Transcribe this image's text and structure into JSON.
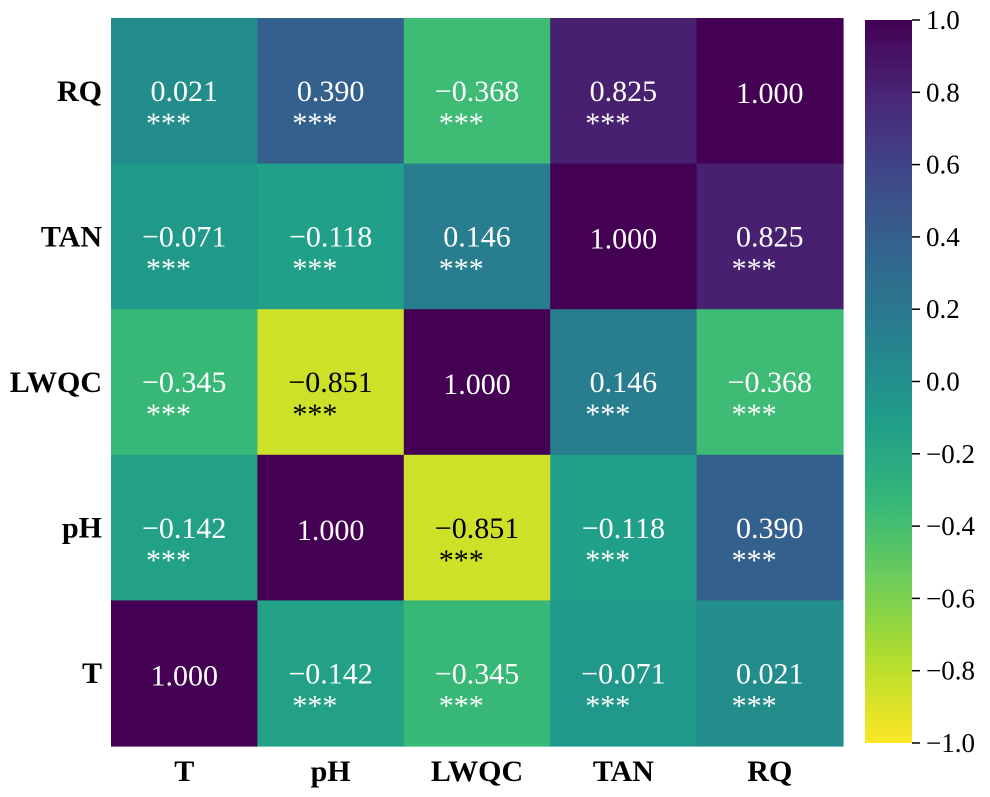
{
  "chart_data": {
    "type": "heatmap",
    "row_labels": [
      "RQ",
      "TAN",
      "LWQC",
      "pH",
      "T"
    ],
    "col_labels": [
      "T",
      "pH",
      "LWQC",
      "TAN",
      "RQ"
    ],
    "values": [
      [
        0.021,
        0.39,
        -0.368,
        0.825,
        1.0
      ],
      [
        -0.071,
        -0.118,
        0.146,
        1.0,
        0.825
      ],
      [
        -0.345,
        -0.851,
        1.0,
        0.146,
        -0.368
      ],
      [
        -0.142,
        1.0,
        -0.851,
        -0.118,
        0.39
      ],
      [
        1.0,
        -0.142,
        -0.345,
        -0.071,
        0.021
      ]
    ],
    "value_labels": [
      [
        "0.021",
        "0.390",
        "−0.368",
        "0.825",
        "1.000"
      ],
      [
        "−0.071",
        "−0.118",
        "0.146",
        "1.000",
        "0.825"
      ],
      [
        "−0.345",
        "−0.851",
        "1.000",
        "0.146",
        "−0.368"
      ],
      [
        "−0.142",
        "1.000",
        "−0.851",
        "−0.118",
        "0.390"
      ],
      [
        "1.000",
        "−0.142",
        "−0.345",
        "−0.071",
        "0.021"
      ]
    ],
    "significance": [
      [
        "***",
        "***",
        "***",
        "***",
        ""
      ],
      [
        "***",
        "***",
        "***",
        "",
        "***"
      ],
      [
        "***",
        "***",
        "",
        "***",
        "***"
      ],
      [
        "***",
        "",
        "***",
        "***",
        "***"
      ],
      [
        "",
        "***",
        "***",
        "***",
        "***"
      ]
    ],
    "colorbar": {
      "range": [
        -1.0,
        1.0
      ],
      "ticks": [
        "1.0",
        "0.8",
        "0.6",
        "0.4",
        "0.2",
        "0.0",
        "−0.2",
        "−0.4",
        "−0.6",
        "−0.8",
        "−1.0"
      ],
      "colormap": "viridis"
    }
  }
}
